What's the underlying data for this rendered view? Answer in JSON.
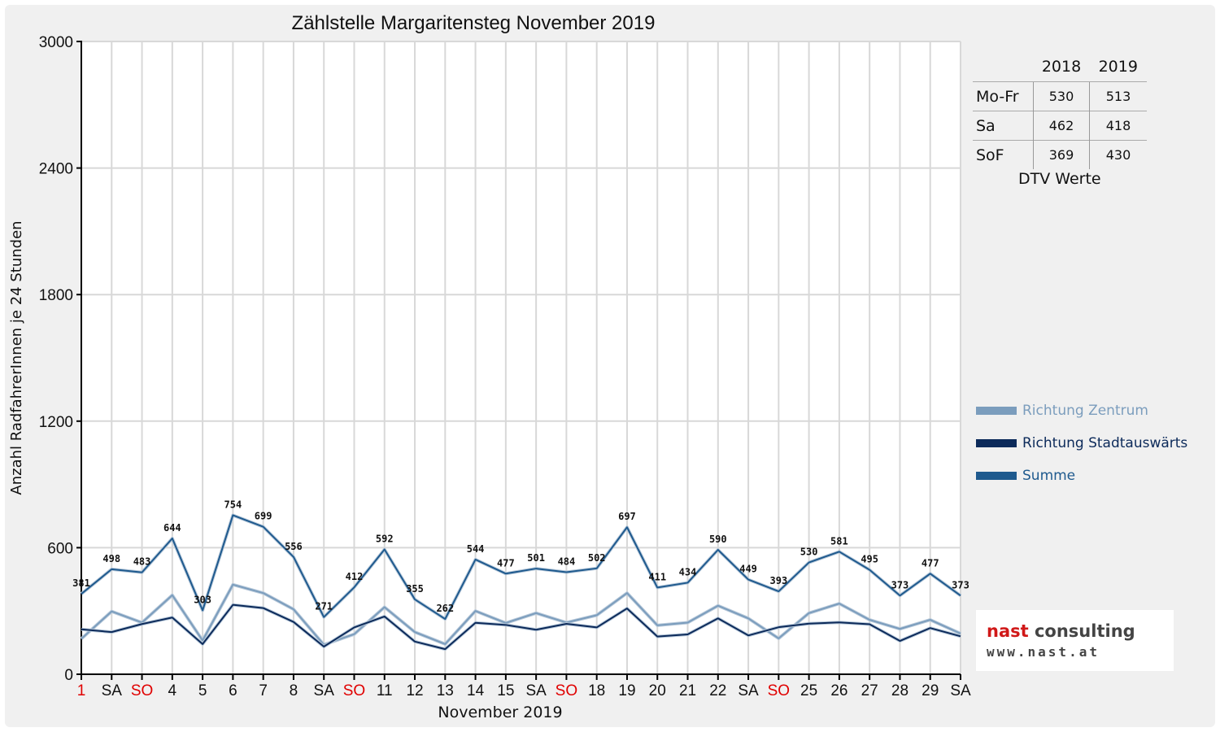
{
  "chart_data": {
    "type": "line",
    "title": "Zählstelle Margaritensteg November 2019",
    "xlabel": "November 2019",
    "ylabel": "Anzahl RadfahrerInnen je 24 Stunden",
    "ylim": [
      0,
      3000
    ],
    "yticks": [
      "0",
      "600",
      "1200",
      "1800",
      "2400",
      "3000"
    ],
    "grid": true,
    "legend_position": "right",
    "categories": [
      "1",
      "SA",
      "SO",
      "4",
      "5",
      "6",
      "7",
      "8",
      "SA",
      "SO",
      "11",
      "12",
      "13",
      "14",
      "15",
      "SA",
      "SO",
      "18",
      "19",
      "20",
      "21",
      "22",
      "SA",
      "SO",
      "25",
      "26",
      "27",
      "28",
      "29",
      "SA"
    ],
    "holiday_categories": [
      0,
      2,
      9,
      16,
      23
    ],
    "series": [
      {
        "name": "Richtung Zentrum",
        "color": "#7b9dbd",
        "values": [
          168,
          298,
          245,
          375,
          160,
          425,
          385,
          308,
          140,
          190,
          318,
          200,
          143,
          300,
          243,
          290,
          245,
          280,
          385,
          232,
          245,
          325,
          265,
          170,
          290,
          335,
          258,
          215,
          258,
          193
        ]
      },
      {
        "name": "Richtung Stadtauswärts",
        "color": "#0c2a5a",
        "values": [
          213,
          200,
          238,
          269,
          143,
          329,
          314,
          248,
          131,
          222,
          274,
          155,
          119,
          244,
          234,
          211,
          239,
          222,
          312,
          179,
          189,
          265,
          184,
          223,
          240,
          246,
          237,
          158,
          219,
          180
        ]
      },
      {
        "name": "Summe",
        "color": "#1f5a8e",
        "values": [
          381,
          498,
          483,
          644,
          303,
          754,
          699,
          556,
          271,
          412,
          592,
          355,
          262,
          544,
          477,
          501,
          484,
          502,
          697,
          411,
          434,
          590,
          449,
          393,
          530,
          581,
          495,
          373,
          477,
          373
        ]
      }
    ],
    "data_labels": [
      "381",
      "498",
      "483",
      "644",
      "303",
      "754",
      "699",
      "556",
      "271",
      "412",
      "592",
      "355",
      "262",
      "544",
      "477",
      "501",
      "484",
      "502",
      "697",
      "411",
      "434",
      "590",
      "449",
      "393",
      "530",
      "581",
      "495",
      "373",
      "477",
      "373"
    ]
  },
  "dtv_table": {
    "headers": [
      "",
      "2018",
      "2019"
    ],
    "rows": [
      {
        "label": "Mo-Fr",
        "v2018": "530",
        "v2019": "513"
      },
      {
        "label": "Sa",
        "v2018": "462",
        "v2019": "418"
      },
      {
        "label": "SoF",
        "v2018": "369",
        "v2019": "430"
      }
    ],
    "caption": "DTV Werte"
  },
  "legend": [
    {
      "label": "Richtung Zentrum",
      "color": "#7b9dbd"
    },
    {
      "label": "Richtung Stadtauswärts",
      "color": "#0c2a5a"
    },
    {
      "label": "Summe",
      "color": "#1f5a8e"
    }
  ],
  "logo": {
    "name_part1": "nast",
    "name_part2": " consulting",
    "url": "www.nast.at"
  },
  "colors": {
    "holiday": "#e00000",
    "axis": "#000000",
    "grid": "#d8d8d8"
  }
}
